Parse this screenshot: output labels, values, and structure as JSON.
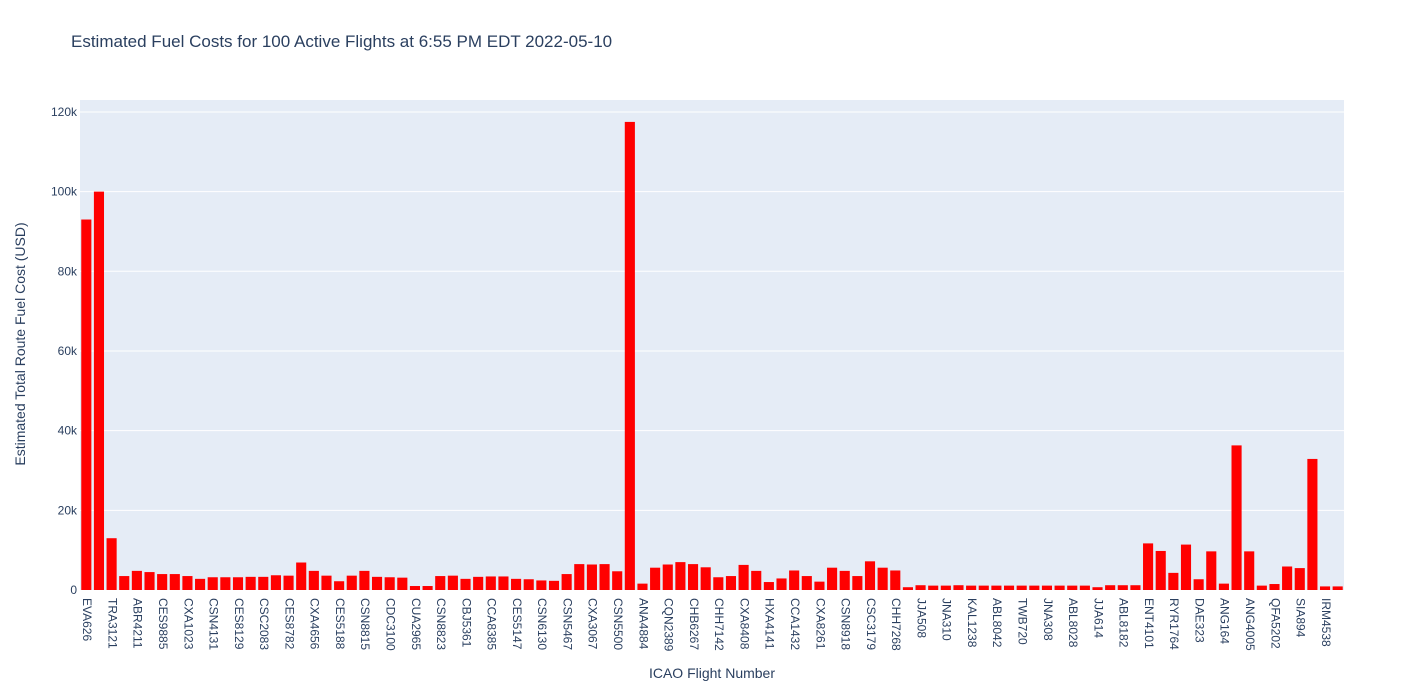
{
  "chart_data": {
    "type": "bar",
    "title": "Estimated Fuel Costs for 100 Active Flights at 6:55 PM EDT 2022-05-10",
    "xlabel": "ICAO Flight Number",
    "ylabel": "Estimated Total Route Fuel Cost (USD)",
    "ylim": [
      0,
      123000
    ],
    "y_ticks": [
      0,
      20000,
      40000,
      60000,
      80000,
      100000,
      120000
    ],
    "y_tick_labels": [
      "0",
      "20k",
      "40k",
      "60k",
      "80k",
      "100k",
      "120k"
    ],
    "x_tick_labels": [
      "EVA626",
      "TRA3121",
      "ABR4211",
      "CES9885",
      "CXA1023",
      "CSN4131",
      "CES8129",
      "CSC2083",
      "CES8782",
      "CXA4656",
      "CES5188",
      "CSN8815",
      "CDC3100",
      "CUA2965",
      "CSN8823",
      "CBJ5361",
      "CCA8385",
      "CES5147",
      "CSN6130",
      "CSN5467",
      "CXA3067",
      "CSN5500",
      "ANA4884",
      "CQN2389",
      "CHB6267",
      "CHH7142",
      "CXA8408",
      "HXA4141",
      "CCA1432",
      "CXA8261",
      "CSN8918",
      "CSC3179",
      "CHH7268",
      "JJA508",
      "JNA310",
      "KAL1238",
      "ABL8042",
      "TWB720",
      "JNA308",
      "ABL8028",
      "JJA614",
      "ABL8182",
      "ENT4101",
      "RYR1764",
      "DAE323",
      "ANG164",
      "ANG4005",
      "QFA5202",
      "SIA894",
      "IRM4538"
    ],
    "values": [
      93000,
      100000,
      13000,
      3500,
      4800,
      4500,
      4000,
      4000,
      3500,
      2800,
      3200,
      3200,
      3200,
      3300,
      3300,
      3700,
      3600,
      6900,
      4800,
      3600,
      2200,
      3600,
      4800,
      3300,
      3200,
      3100,
      1000,
      1000,
      3500,
      3600,
      2800,
      3300,
      3400,
      3400,
      2800,
      2700,
      2400,
      2300,
      4000,
      6500,
      6400,
      6500,
      4700,
      117500,
      1600,
      5600,
      6400,
      7000,
      6500,
      5700,
      3200,
      3500,
      6300,
      4800,
      2000,
      2900,
      4900,
      3500,
      2100,
      5600,
      4800,
      3500,
      7200,
      5600,
      4900,
      700,
      1200,
      1100,
      1100,
      1200,
      1100,
      1100,
      1100,
      1100,
      1100,
      1100,
      1100,
      1100,
      1100,
      1100,
      700,
      1200,
      1200,
      1200,
      11700,
      9800,
      4300,
      11400,
      2700,
      9700,
      1600,
      36300,
      9700,
      1100,
      1500,
      5900,
      5500,
      32900,
      900,
      900
    ],
    "bar_color": "#ff0000",
    "plot_bg": "#e5ecf6",
    "grid_color": "#ffffff",
    "grid": true,
    "legend": "none"
  }
}
